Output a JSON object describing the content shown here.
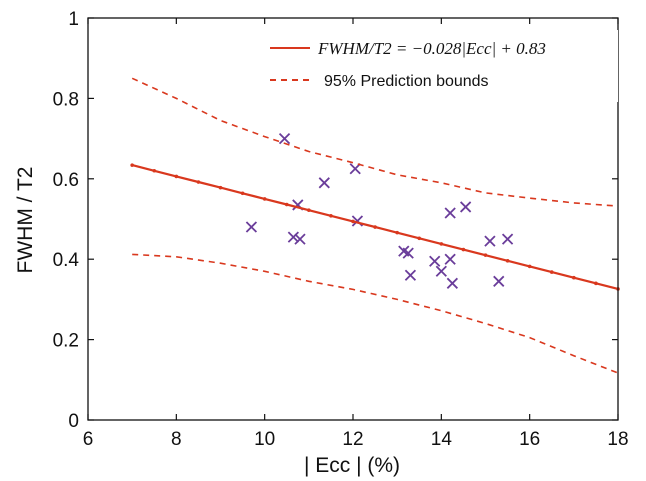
{
  "chart_data": {
    "type": "scatter",
    "xlabel": "| Ecc | (%)",
    "ylabel": "FWHM / T2",
    "xlim": [
      6,
      18
    ],
    "ylim": [
      0,
      1
    ],
    "x_ticks": [
      "6",
      "8",
      "10",
      "12",
      "14",
      "16",
      "18"
    ],
    "y_ticks": [
      "0",
      "0.2",
      "0.4",
      "0.6",
      "0.8",
      "1"
    ],
    "grid": false,
    "legend_position": "top-right",
    "colors": {
      "fit": "#d9381e",
      "bounds": "#d9381e",
      "points": "#6a3d9a",
      "axis": "#111111"
    },
    "series": [
      {
        "kind": "scatter",
        "marker": "x",
        "points": [
          {
            "x": 9.7,
            "y": 0.48
          },
          {
            "x": 10.45,
            "y": 0.7
          },
          {
            "x": 10.65,
            "y": 0.455
          },
          {
            "x": 10.75,
            "y": 0.535
          },
          {
            "x": 10.8,
            "y": 0.45
          },
          {
            "x": 11.35,
            "y": 0.59
          },
          {
            "x": 12.05,
            "y": 0.625
          },
          {
            "x": 12.1,
            "y": 0.495
          },
          {
            "x": 13.15,
            "y": 0.42
          },
          {
            "x": 13.25,
            "y": 0.415
          },
          {
            "x": 13.3,
            "y": 0.36
          },
          {
            "x": 13.85,
            "y": 0.395
          },
          {
            "x": 14.0,
            "y": 0.37
          },
          {
            "x": 14.2,
            "y": 0.515
          },
          {
            "x": 14.2,
            "y": 0.4
          },
          {
            "x": 14.25,
            "y": 0.34
          },
          {
            "x": 14.55,
            "y": 0.53
          },
          {
            "x": 15.1,
            "y": 0.445
          },
          {
            "x": 15.3,
            "y": 0.345
          },
          {
            "x": 15.5,
            "y": 0.45
          }
        ]
      },
      {
        "name": "FWHM / T2 = −0.028|Ecc| + 0.83",
        "kind": "line",
        "style": "solid",
        "x": [
          7,
          7.5,
          8,
          8.5,
          9,
          9.5,
          10,
          10.5,
          11,
          11.5,
          12,
          12.5,
          13,
          13.5,
          14,
          14.5,
          15,
          15.5,
          16,
          16.5,
          17,
          17.5,
          18
        ],
        "y": [
          0.634,
          0.62,
          0.606,
          0.592,
          0.578,
          0.564,
          0.55,
          0.536,
          0.522,
          0.508,
          0.494,
          0.48,
          0.466,
          0.452,
          0.438,
          0.424,
          0.41,
          0.396,
          0.382,
          0.368,
          0.354,
          0.34,
          0.326
        ]
      },
      {
        "name": "95% Prediction bounds",
        "kind": "line",
        "style": "dashed",
        "x": [
          7,
          8,
          9,
          10,
          11,
          12,
          13,
          14,
          15,
          16,
          17,
          18
        ],
        "y": [
          0.85,
          0.8,
          0.745,
          0.705,
          0.668,
          0.64,
          0.61,
          0.59,
          0.565,
          0.552,
          0.54,
          0.532
        ]
      },
      {
        "kind": "line",
        "style": "dashed",
        "x": [
          7,
          8,
          9,
          10,
          11,
          12,
          13,
          14,
          15,
          16,
          17,
          18
        ],
        "y": [
          0.412,
          0.406,
          0.39,
          0.37,
          0.345,
          0.325,
          0.3,
          0.272,
          0.24,
          0.205,
          0.16,
          0.117
        ]
      }
    ]
  },
  "legend": {
    "fit_label": "FWHM/T2 = −0.028|Ecc| + 0.83",
    "bounds_label": "95% Prediction bounds"
  }
}
